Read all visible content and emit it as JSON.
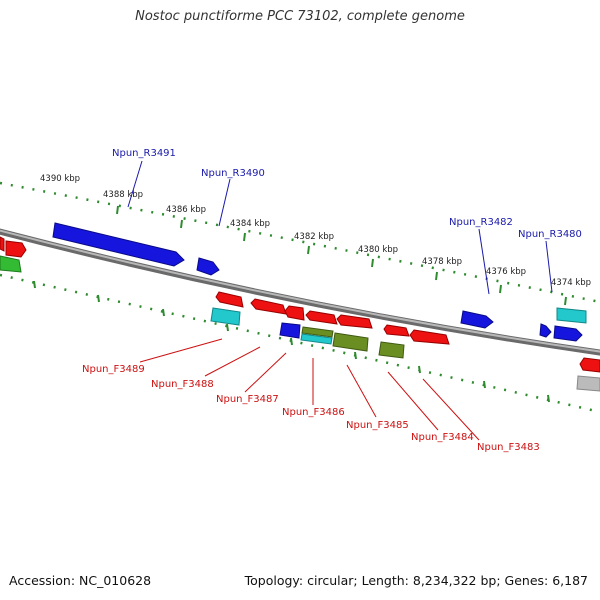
{
  "title": "Nostoc punctiforme PCC 73102, complete genome",
  "footer": {
    "accession": "Accession: NC_010628",
    "summary": "Topology: circular; Length: 8,234,322 bp; Genes: 6,187"
  },
  "colors": {
    "backbone": "#8a8a8a",
    "ticks": "#2e8b2e",
    "reverse_label": "#1a1aaa",
    "forward_label": "#cc1111",
    "red": "#ee1111",
    "blue": "#1111dd",
    "cyan": "#22c8cc",
    "olive": "#6b8e23",
    "green": "#33bb33",
    "gray": "#bbbbbb"
  },
  "tick_labels": [
    "4390 kbp",
    "4388 kbp",
    "4386 kbp",
    "4384 kbp",
    "4382 kbp",
    "4380 kbp",
    "4378 kbp",
    "4376 kbp",
    "4374 kbp"
  ],
  "reverse_labels": [
    "Npun_R3491",
    "Npun_R3490",
    "Npun_R3482",
    "Npun_R3480"
  ],
  "forward_labels": [
    "Npun_F3489",
    "Npun_F3488",
    "Npun_F3487",
    "Npun_F3486",
    "Npun_F3485",
    "Npun_F3484",
    "Npun_F3483"
  ]
}
